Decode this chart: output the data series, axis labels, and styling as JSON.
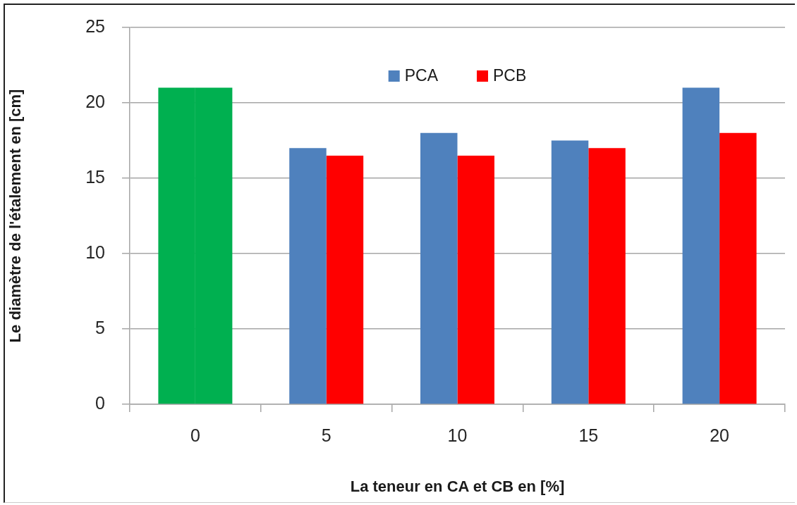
{
  "chart_data": {
    "type": "bar",
    "categories": [
      "0",
      "5",
      "10",
      "15",
      "20"
    ],
    "series": [
      {
        "name": "PCA",
        "color": "#4f81bd",
        "colors": [
          "#00b050",
          "#4f81bd",
          "#4f81bd",
          "#4f81bd",
          "#4f81bd"
        ],
        "values": [
          21,
          17,
          18,
          17.5,
          21
        ]
      },
      {
        "name": "PCB",
        "color": "#ff0000",
        "colors": [
          "#00b050",
          "#ff0000",
          "#ff0000",
          "#ff0000",
          "#ff0000"
        ],
        "values": [
          21,
          16.5,
          16.5,
          17,
          18
        ]
      }
    ],
    "xlabel": "La teneur en CA et CB en [%]",
    "ylabel": "Le diamètre de l'étalement en [cm]",
    "ylim": [
      0,
      25
    ],
    "yticks": [
      0,
      5,
      10,
      15,
      20,
      25
    ],
    "grid": "y",
    "legend": "top"
  }
}
